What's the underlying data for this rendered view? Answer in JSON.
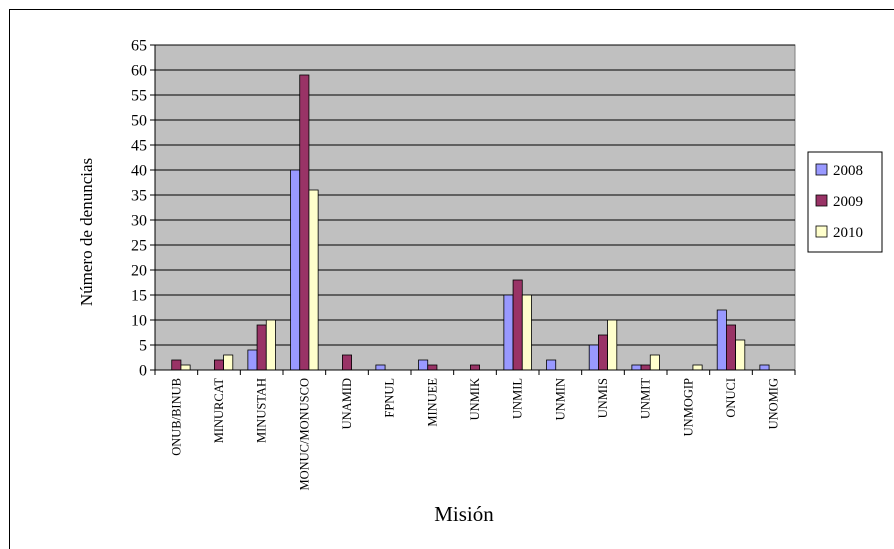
{
  "chart_data": {
    "type": "bar",
    "title": "",
    "xlabel": "Misión",
    "ylabel": "Número de denuncias",
    "ylim": [
      0,
      65
    ],
    "yticks": [
      0,
      5,
      10,
      15,
      20,
      25,
      30,
      35,
      40,
      45,
      50,
      55,
      60,
      65
    ],
    "grid": true,
    "legend_position": "right",
    "categories": [
      "ONUB/BINUB",
      "MINURCAT",
      "MINUSTAH",
      "MONUC/MONUSCO",
      "UNAMID",
      "FPNUL",
      "MINUEE",
      "UNMIK",
      "UNMIL",
      "UNMIN",
      "UNMIS",
      "UNMIT",
      "UNMOGIP",
      "ONUCI",
      "UNOMIG"
    ],
    "series": [
      {
        "name": "2008",
        "color": "#9999ff",
        "values": [
          0,
          0,
          4,
          40,
          0,
          1,
          2,
          0,
          15,
          2,
          5,
          1,
          0,
          12,
          1
        ]
      },
      {
        "name": "2009",
        "color": "#993366",
        "values": [
          2,
          2,
          9,
          59,
          3,
          0,
          1,
          1,
          18,
          0,
          7,
          1,
          0,
          9,
          0
        ]
      },
      {
        "name": "2010",
        "color": "#ffffcc",
        "values": [
          1,
          3,
          10,
          36,
          0,
          0,
          0,
          0,
          15,
          0,
          10,
          3,
          1,
          6,
          0
        ]
      }
    ],
    "plot_background": "#c0c0c0"
  }
}
